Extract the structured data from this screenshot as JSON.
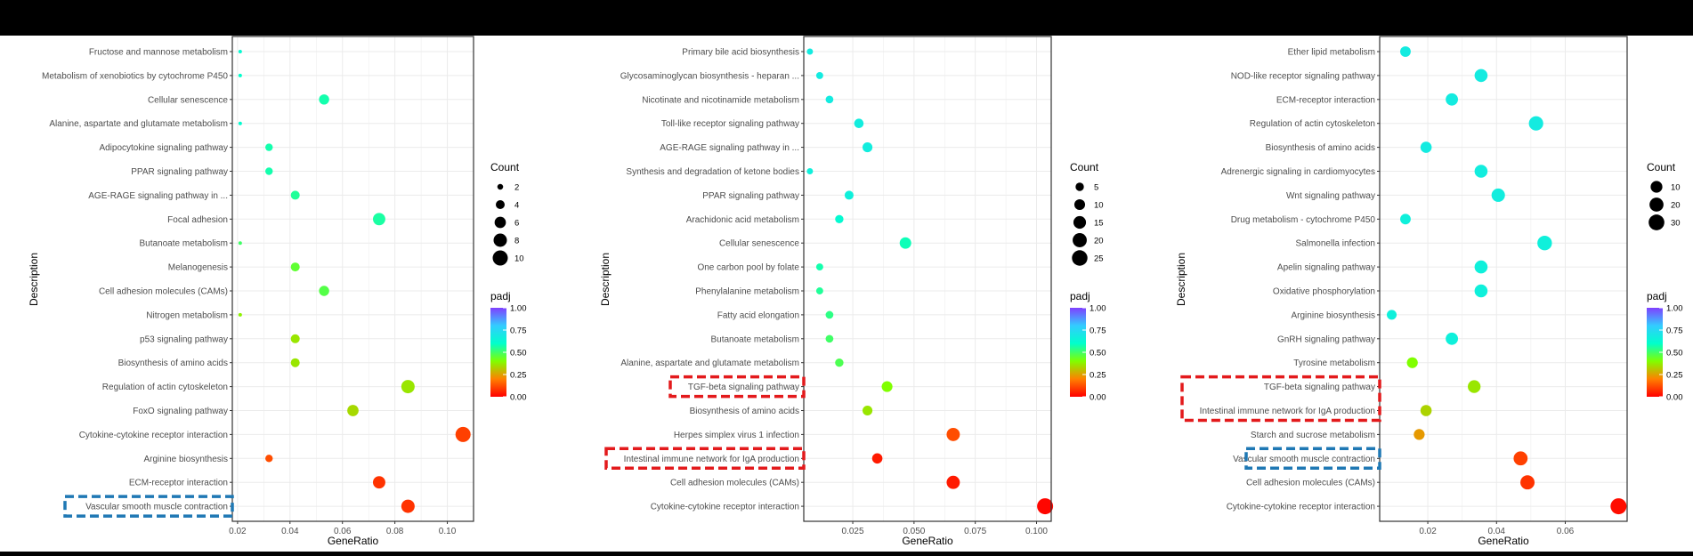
{
  "theme": {
    "background": "#000000",
    "panel_border": "#333333",
    "grid": "#ebebeb",
    "highlight_red": "#e31a1c",
    "highlight_blue": "#1f78b4",
    "padj_gradient": [
      "#ff0000",
      "#ff8000",
      "#80ff00",
      "#00ffcc",
      "#33ccff",
      "#8040ff"
    ]
  },
  "chart_data": [
    {
      "type": "scatter",
      "subtype": "dot-plot",
      "xlabel": "GeneRatio",
      "ylabel": "Description",
      "xlim": [
        0.018,
        0.11
      ],
      "xticks": [
        0.02,
        0.04,
        0.06,
        0.08,
        0.1
      ],
      "xtick_labels": [
        "0.02",
        "0.04",
        "0.06",
        "0.08",
        "0.10"
      ],
      "grid": true,
      "legend_size": {
        "title": "Count",
        "values": [
          2,
          4,
          6,
          8,
          10
        ]
      },
      "legend_color": {
        "title": "padj",
        "range": [
          0,
          1
        ],
        "ticks": [
          "1.00",
          "0.75",
          "0.50",
          "0.25",
          "0.00"
        ]
      },
      "points": [
        {
          "label": "Fructose and mannose metabolism",
          "gene_ratio": 0.021,
          "count": 1,
          "padj": 0.62
        },
        {
          "label": "Metabolism of xenobiotics by cytochrome P450",
          "gene_ratio": 0.021,
          "count": 1,
          "padj": 0.6
        },
        {
          "label": "Cellular senescence",
          "gene_ratio": 0.053,
          "count": 5,
          "padj": 0.57
        },
        {
          "label": "Alanine, aspartate and glutamate metabolism",
          "gene_ratio": 0.021,
          "count": 1,
          "padj": 0.61
        },
        {
          "label": "Adipocytokine signaling pathway",
          "gene_ratio": 0.032,
          "count": 3,
          "padj": 0.57
        },
        {
          "label": "PPAR signaling pathway",
          "gene_ratio": 0.032,
          "count": 3,
          "padj": 0.57
        },
        {
          "label": "AGE-RAGE signaling pathway in ...",
          "gene_ratio": 0.042,
          "count": 4,
          "padj": 0.55
        },
        {
          "label": "Focal adhesion",
          "gene_ratio": 0.074,
          "count": 7,
          "padj": 0.56
        },
        {
          "label": "Butanoate metabolism",
          "gene_ratio": 0.021,
          "count": 1,
          "padj": 0.5
        },
        {
          "label": "Melanogenesis",
          "gene_ratio": 0.042,
          "count": 4,
          "padj": 0.45
        },
        {
          "label": "Cell adhesion molecules (CAMs)",
          "gene_ratio": 0.053,
          "count": 5,
          "padj": 0.47
        },
        {
          "label": "Nitrogen metabolism",
          "gene_ratio": 0.021,
          "count": 1,
          "padj": 0.38
        },
        {
          "label": "p53 signaling pathway",
          "gene_ratio": 0.042,
          "count": 4,
          "padj": 0.36
        },
        {
          "label": "Biosynthesis of amino acids",
          "gene_ratio": 0.042,
          "count": 4,
          "padj": 0.36
        },
        {
          "label": "Regulation of actin cytoskeleton",
          "gene_ratio": 0.085,
          "count": 8,
          "padj": 0.36
        },
        {
          "label": "FoxO signaling pathway",
          "gene_ratio": 0.064,
          "count": 6,
          "padj": 0.34
        },
        {
          "label": "Cytokine-cytokine receptor interaction",
          "gene_ratio": 0.106,
          "count": 10,
          "padj": 0.1
        },
        {
          "label": "Arginine biosynthesis",
          "gene_ratio": 0.032,
          "count": 3,
          "padj": 0.12
        },
        {
          "label": "ECM-receptor interaction",
          "gene_ratio": 0.074,
          "count": 7,
          "padj": 0.08
        },
        {
          "label": "Vascular smooth muscle contraction",
          "gene_ratio": 0.085,
          "count": 8,
          "padj": 0.08
        }
      ],
      "highlight_boxes": [
        {
          "label": "Vascular smooth muscle contraction",
          "color": "blue"
        }
      ]
    },
    {
      "type": "scatter",
      "subtype": "dot-plot",
      "xlabel": "GeneRatio",
      "ylabel": "Description",
      "xlim": [
        0.005,
        0.106
      ],
      "xticks": [
        0.025,
        0.05,
        0.075,
        0.1
      ],
      "xtick_labels": [
        "0.025",
        "0.050",
        "0.075",
        "0.100"
      ],
      "grid": true,
      "legend_size": {
        "title": "Count",
        "values": [
          5,
          10,
          15,
          20,
          25
        ]
      },
      "legend_color": {
        "title": "padj",
        "range": [
          0,
          1
        ],
        "ticks": [
          "1.00",
          "0.75",
          "0.50",
          "0.25",
          "0.00"
        ]
      },
      "points": [
        {
          "label": "Primary bile acid biosynthesis",
          "gene_ratio": 0.0075,
          "count": 2,
          "padj": 0.68
        },
        {
          "label": "Glycosaminoglycan biosynthesis - heparan ...",
          "gene_ratio": 0.0115,
          "count": 3,
          "padj": 0.68
        },
        {
          "label": "Nicotinate and nicotinamide metabolism",
          "gene_ratio": 0.0155,
          "count": 4,
          "padj": 0.68
        },
        {
          "label": "Toll-like receptor signaling pathway",
          "gene_ratio": 0.0275,
          "count": 7,
          "padj": 0.67
        },
        {
          "label": "AGE-RAGE signaling pathway in ...",
          "gene_ratio": 0.031,
          "count": 8,
          "padj": 0.67
        },
        {
          "label": "Synthesis and degradation of ketone bodies",
          "gene_ratio": 0.0075,
          "count": 2,
          "padj": 0.66
        },
        {
          "label": "PPAR signaling pathway",
          "gene_ratio": 0.0235,
          "count": 6,
          "padj": 0.66
        },
        {
          "label": "Arachidonic acid metabolism",
          "gene_ratio": 0.0195,
          "count": 5,
          "padj": 0.62
        },
        {
          "label": "Cellular senescence",
          "gene_ratio": 0.0465,
          "count": 12,
          "padj": 0.58
        },
        {
          "label": "One carbon pool by folate",
          "gene_ratio": 0.0115,
          "count": 3,
          "padj": 0.57
        },
        {
          "label": "Phenylalanine metabolism",
          "gene_ratio": 0.0115,
          "count": 3,
          "padj": 0.55
        },
        {
          "label": "Fatty acid elongation",
          "gene_ratio": 0.0155,
          "count": 4,
          "padj": 0.53
        },
        {
          "label": "Butanoate metabolism",
          "gene_ratio": 0.0155,
          "count": 4,
          "padj": 0.5
        },
        {
          "label": "Alanine, aspartate and glutamate metabolism",
          "gene_ratio": 0.0195,
          "count": 5,
          "padj": 0.48
        },
        {
          "label": "TGF-beta signaling pathway",
          "gene_ratio": 0.039,
          "count": 10,
          "padj": 0.4
        },
        {
          "label": "Biosynthesis of amino acids",
          "gene_ratio": 0.031,
          "count": 8,
          "padj": 0.36
        },
        {
          "label": "Herpes simplex virus 1 infection",
          "gene_ratio": 0.066,
          "count": 17,
          "padj": 0.12
        },
        {
          "label": "Intestinal immune network for IgA production",
          "gene_ratio": 0.035,
          "count": 9,
          "padj": 0.04
        },
        {
          "label": "Cell adhesion molecules (CAMs)",
          "gene_ratio": 0.066,
          "count": 17,
          "padj": 0.04
        },
        {
          "label": "Cytokine-cytokine receptor interaction",
          "gene_ratio": 0.1035,
          "count": 27,
          "padj": 0.01
        }
      ],
      "highlight_boxes": [
        {
          "label": "TGF-beta signaling pathway",
          "color": "red"
        },
        {
          "label": "Intestinal immune network for IgA production",
          "color": "red"
        }
      ]
    },
    {
      "type": "scatter",
      "subtype": "dot-plot",
      "xlabel": "GeneRatio",
      "ylabel": "Description",
      "xlim": [
        0.006,
        0.078
      ],
      "xticks": [
        0.02,
        0.04,
        0.06
      ],
      "xtick_labels": [
        "0.02",
        "0.04",
        "0.06"
      ],
      "grid": true,
      "legend_size": {
        "title": "Count",
        "values": [
          10,
          20,
          30
        ]
      },
      "legend_color": {
        "title": "padj",
        "range": [
          0,
          1
        ],
        "ticks": [
          "1.00",
          "0.75",
          "0.50",
          "0.25",
          "0.00"
        ]
      },
      "points": [
        {
          "label": "Ether lipid metabolism",
          "gene_ratio": 0.0135,
          "count": 6,
          "padj": 0.68
        },
        {
          "label": "NOD-like receptor signaling pathway",
          "gene_ratio": 0.0355,
          "count": 15,
          "padj": 0.68
        },
        {
          "label": "ECM-receptor interaction",
          "gene_ratio": 0.027,
          "count": 12,
          "padj": 0.68
        },
        {
          "label": "Regulation of actin cytoskeleton",
          "gene_ratio": 0.0515,
          "count": 22,
          "padj": 0.68
        },
        {
          "label": "Biosynthesis of amino acids",
          "gene_ratio": 0.0195,
          "count": 8,
          "padj": 0.68
        },
        {
          "label": "Adrenergic signaling in cardiomyocytes",
          "gene_ratio": 0.0355,
          "count": 15,
          "padj": 0.67
        },
        {
          "label": "Wnt signaling pathway",
          "gene_ratio": 0.0405,
          "count": 17,
          "padj": 0.67
        },
        {
          "label": "Drug metabolism - cytochrome P450",
          "gene_ratio": 0.0135,
          "count": 6,
          "padj": 0.66
        },
        {
          "label": "Salmonella infection",
          "gene_ratio": 0.054,
          "count": 23,
          "padj": 0.66
        },
        {
          "label": "Apelin signaling pathway",
          "gene_ratio": 0.0355,
          "count": 15,
          "padj": 0.66
        },
        {
          "label": "Oxidative phosphorylation",
          "gene_ratio": 0.0355,
          "count": 15,
          "padj": 0.66
        },
        {
          "label": "Arginine biosynthesis",
          "gene_ratio": 0.0095,
          "count": 4,
          "padj": 0.66
        },
        {
          "label": "GnRH signaling pathway",
          "gene_ratio": 0.027,
          "count": 12,
          "padj": 0.66
        },
        {
          "label": "Tyrosine metabolism",
          "gene_ratio": 0.0155,
          "count": 7,
          "padj": 0.4
        },
        {
          "label": "TGF-beta signaling pathway",
          "gene_ratio": 0.0335,
          "count": 14,
          "padj": 0.36
        },
        {
          "label": "Intestinal immune network for IgA production",
          "gene_ratio": 0.0195,
          "count": 8,
          "padj": 0.33
        },
        {
          "label": "Starch and sucrose metabolism",
          "gene_ratio": 0.0175,
          "count": 7,
          "padj": 0.24
        },
        {
          "label": "Vascular smooth muscle contraction",
          "gene_ratio": 0.047,
          "count": 20,
          "padj": 0.1
        },
        {
          "label": "Cell adhesion molecules (CAMs)",
          "gene_ratio": 0.049,
          "count": 21,
          "padj": 0.08
        },
        {
          "label": "Cytokine-cytokine receptor interaction",
          "gene_ratio": 0.0755,
          "count": 32,
          "padj": 0.02
        }
      ],
      "highlight_boxes": [
        {
          "label": "TGF-beta signaling pathway",
          "color": "red",
          "span_to": "Intestinal immune network for IgA production"
        },
        {
          "label": "Vascular smooth muscle contraction",
          "color": "blue"
        }
      ]
    }
  ]
}
